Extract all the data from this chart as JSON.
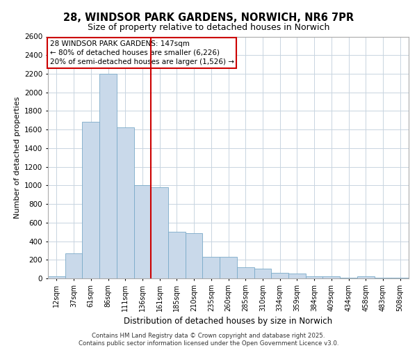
{
  "title_line1": "28, WINDSOR PARK GARDENS, NORWICH, NR6 7PR",
  "title_line2": "Size of property relative to detached houses in Norwich",
  "xlabel": "Distribution of detached houses by size in Norwich",
  "ylabel": "Number of detached properties",
  "footer_line1": "Contains HM Land Registry data © Crown copyright and database right 2025.",
  "footer_line2": "Contains public sector information licensed under the Open Government Licence v3.0.",
  "annotation_line1": "28 WINDSOR PARK GARDENS: 147sqm",
  "annotation_line2": "← 80% of detached houses are smaller (6,226)",
  "annotation_line3": "20% of semi-detached houses are larger (1,526) →",
  "bar_color": "#c9d9ea",
  "bar_edge_color": "#7aaac8",
  "line_color": "#cc0000",
  "annotation_box_color": "#cc0000",
  "grid_color": "#c8d4e0",
  "background_color": "#ffffff",
  "ylim": [
    0,
    2600
  ],
  "yticks": [
    0,
    200,
    400,
    600,
    800,
    1000,
    1200,
    1400,
    1600,
    1800,
    2000,
    2200,
    2400,
    2600
  ],
  "categories": [
    "12sqm",
    "37sqm",
    "61sqm",
    "86sqm",
    "111sqm",
    "136sqm",
    "161sqm",
    "185sqm",
    "210sqm",
    "235sqm",
    "260sqm",
    "285sqm",
    "310sqm",
    "334sqm",
    "359sqm",
    "384sqm",
    "409sqm",
    "434sqm",
    "458sqm",
    "483sqm",
    "508sqm"
  ],
  "bar_values": [
    25,
    270,
    1680,
    2200,
    1620,
    1000,
    980,
    500,
    490,
    230,
    230,
    120,
    105,
    60,
    50,
    25,
    20,
    8,
    20,
    8,
    5
  ],
  "red_line_x": 5.5
}
